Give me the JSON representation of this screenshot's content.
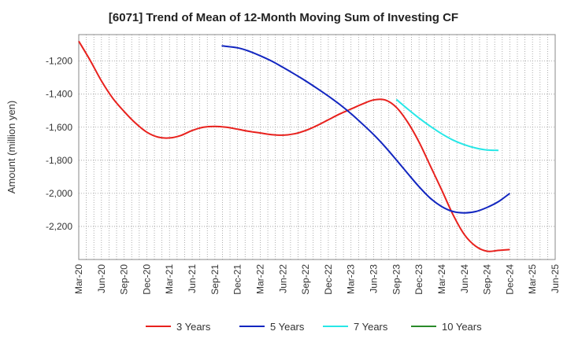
{
  "chart_data": {
    "type": "line",
    "title": "[6071]  Trend of Mean of 12-Month Moving Sum of Investing CF",
    "xlabel": "",
    "ylabel": "Amount (million yen)",
    "ylim": [
      -2400,
      -1040
    ],
    "yticks": [
      -1200,
      -1400,
      -1600,
      -1800,
      -2000,
      -2200
    ],
    "ytick_labels": [
      "-1,200",
      "-1,400",
      "-1,600",
      "-1,800",
      "-2,000",
      "-2,200"
    ],
    "x_categories": [
      "Mar-20",
      "Jun-20",
      "Sep-20",
      "Dec-20",
      "Mar-21",
      "Jun-21",
      "Sep-21",
      "Dec-21",
      "Mar-22",
      "Jun-22",
      "Sep-22",
      "Dec-22",
      "Mar-23",
      "Jun-23",
      "Sep-23",
      "Dec-23",
      "Mar-24",
      "Jun-24",
      "Sep-24",
      "Dec-24",
      "Mar-25",
      "Jun-25"
    ],
    "series": [
      {
        "name": "3 Years",
        "color": "#e8211d",
        "points": [
          [
            0,
            -1080
          ],
          [
            0.5,
            -1195
          ],
          [
            1,
            -1320
          ],
          [
            1.5,
            -1425
          ],
          [
            2,
            -1505
          ],
          [
            2.5,
            -1575
          ],
          [
            3,
            -1630
          ],
          [
            3.5,
            -1660
          ],
          [
            4,
            -1665
          ],
          [
            4.5,
            -1650
          ],
          [
            5,
            -1620
          ],
          [
            5.5,
            -1600
          ],
          [
            6,
            -1595
          ],
          [
            6.5,
            -1600
          ],
          [
            7,
            -1612
          ],
          [
            7.5,
            -1625
          ],
          [
            8,
            -1635
          ],
          [
            8.5,
            -1645
          ],
          [
            9,
            -1648
          ],
          [
            9.5,
            -1640
          ],
          [
            10,
            -1620
          ],
          [
            10.5,
            -1590
          ],
          [
            11,
            -1555
          ],
          [
            11.5,
            -1520
          ],
          [
            12,
            -1490
          ],
          [
            12.5,
            -1460
          ],
          [
            13,
            -1435
          ],
          [
            13.5,
            -1435
          ],
          [
            14,
            -1480
          ],
          [
            14.5,
            -1570
          ],
          [
            15,
            -1690
          ],
          [
            15.5,
            -1835
          ],
          [
            16,
            -1980
          ],
          [
            16.5,
            -2130
          ],
          [
            17,
            -2250
          ],
          [
            17.5,
            -2320
          ],
          [
            18,
            -2350
          ],
          [
            18.5,
            -2345
          ],
          [
            19,
            -2340
          ]
        ]
      },
      {
        "name": "5 Years",
        "color": "#1226c0",
        "points": [
          [
            6.3,
            -1108
          ],
          [
            7,
            -1120
          ],
          [
            7.5,
            -1140
          ],
          [
            8,
            -1168
          ],
          [
            8.5,
            -1200
          ],
          [
            9,
            -1238
          ],
          [
            9.5,
            -1278
          ],
          [
            10,
            -1320
          ],
          [
            10.5,
            -1365
          ],
          [
            11,
            -1412
          ],
          [
            11.5,
            -1462
          ],
          [
            12,
            -1518
          ],
          [
            12.5,
            -1580
          ],
          [
            13,
            -1645
          ],
          [
            13.5,
            -1718
          ],
          [
            14,
            -1798
          ],
          [
            14.5,
            -1880
          ],
          [
            15,
            -1960
          ],
          [
            15.5,
            -2030
          ],
          [
            16,
            -2080
          ],
          [
            16.5,
            -2110
          ],
          [
            17,
            -2118
          ],
          [
            17.5,
            -2110
          ],
          [
            18,
            -2085
          ],
          [
            18.5,
            -2050
          ],
          [
            19,
            -2000
          ]
        ]
      },
      {
        "name": "7 Years",
        "color": "#27e7e7",
        "points": [
          [
            14.0,
            -1432
          ],
          [
            14.5,
            -1490
          ],
          [
            15,
            -1545
          ],
          [
            15.5,
            -1595
          ],
          [
            16,
            -1640
          ],
          [
            16.5,
            -1678
          ],
          [
            17,
            -1706
          ],
          [
            17.5,
            -1726
          ],
          [
            18,
            -1738
          ],
          [
            18.5,
            -1740
          ]
        ]
      },
      {
        "name": "10 Years",
        "color": "#2a8a2a",
        "points": []
      }
    ]
  }
}
